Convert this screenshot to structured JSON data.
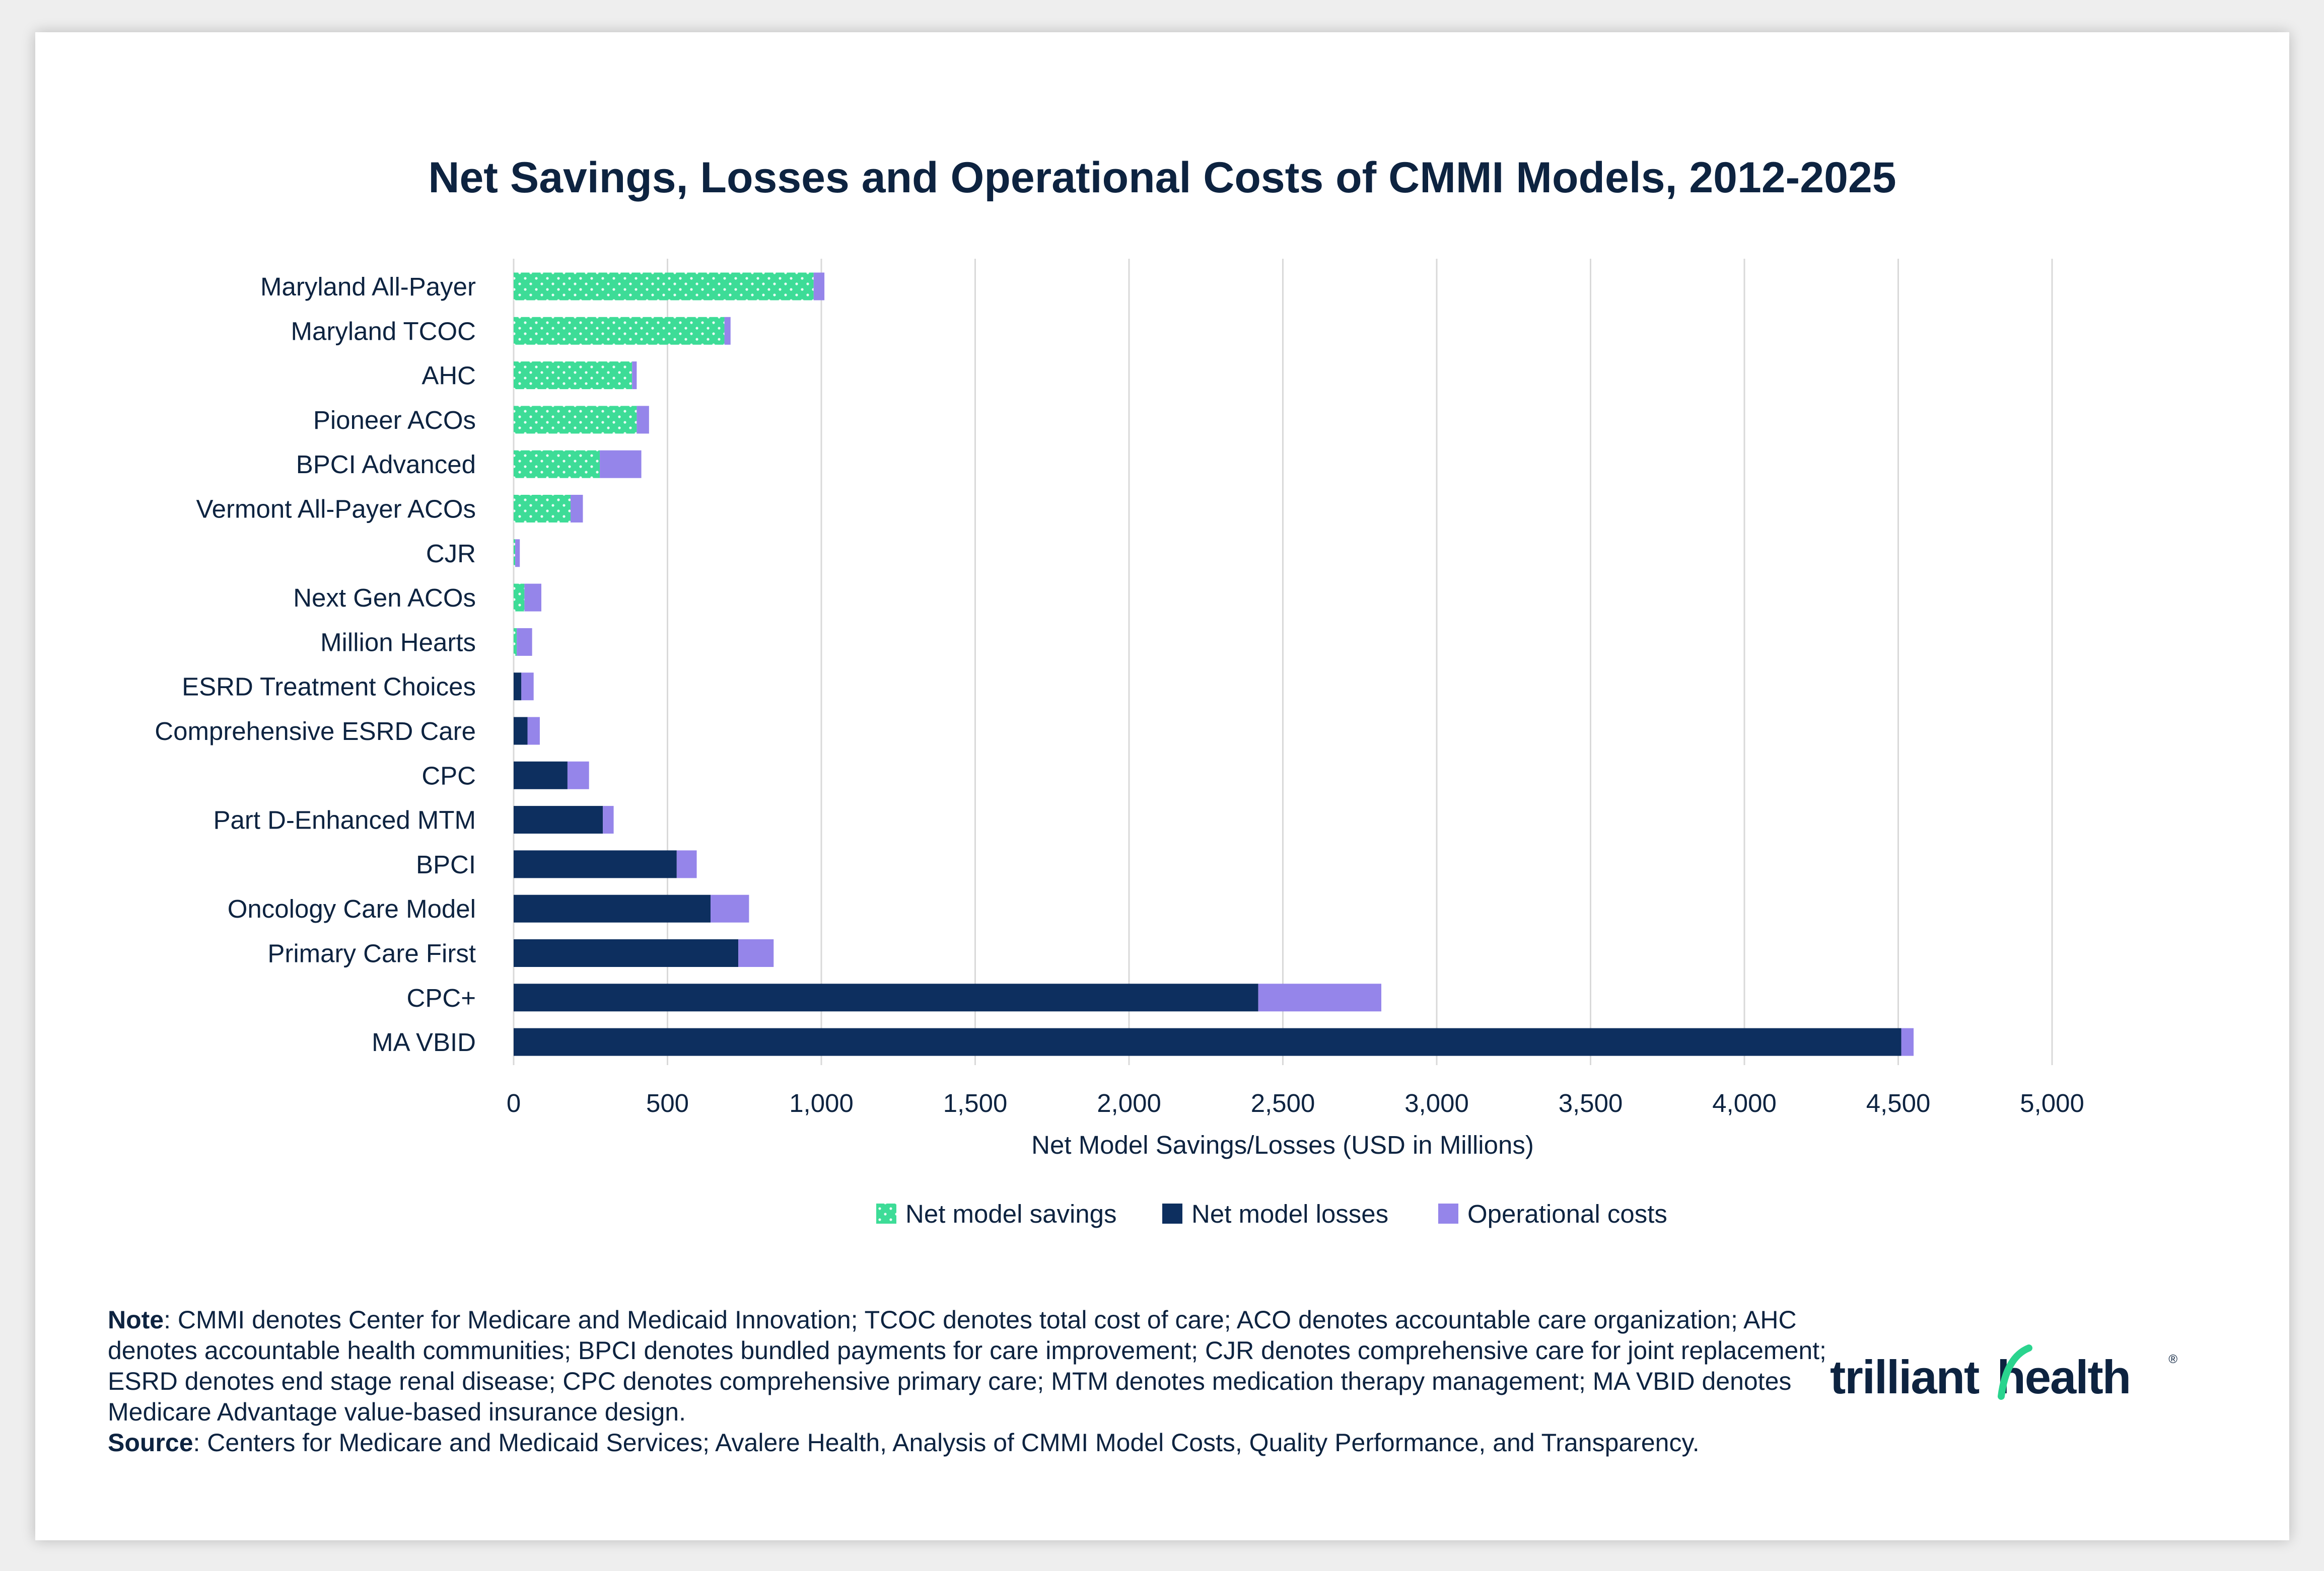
{
  "colors": {
    "savings": "#3ddc97",
    "losses": "#0d2f5f",
    "operational": "#9585ea",
    "text": "#0d2340",
    "grid": "#d9d9d9",
    "brand_green": "#2ad48e"
  },
  "chart_data": {
    "type": "bar",
    "orientation": "horizontal",
    "stacked": true,
    "title": "Net Savings, Losses and Operational Costs of CMMI Models, 2012-2025",
    "xlabel": "Net Model Savings/Losses (USD in Millions)",
    "ylabel": "",
    "xlim": [
      0,
      5000
    ],
    "xticks": [
      0,
      500,
      1000,
      1500,
      2000,
      2500,
      3000,
      3500,
      4000,
      4500,
      5000
    ],
    "xtick_labels": [
      "0",
      "500",
      "1,000",
      "1,500",
      "2,000",
      "2,500",
      "3,000",
      "3,500",
      "4,000",
      "4,500",
      "5,000"
    ],
    "grid": "vertical",
    "legend_position": "bottom-center",
    "categories": [
      "Maryland All-Payer",
      "Maryland TCOC",
      "AHC",
      "Pioneer ACOs",
      "BPCI Advanced",
      "Vermont All-Payer ACOs",
      "CJR",
      "Next Gen ACOs",
      "Million Hearts",
      "ESRD Treatment Choices",
      "Comprehensive ESRD Care",
      "CPC",
      "Part D-Enhanced MTM",
      "BPCI",
      "Oncology Care Model",
      "Primary Care First",
      "CPC+",
      "MA VBID"
    ],
    "series": [
      {
        "name": "Net model savings",
        "color_key": "savings",
        "pattern": "dotted",
        "values": [
          975,
          685,
          385,
          400,
          280,
          185,
          5,
          35,
          10,
          0,
          0,
          0,
          0,
          0,
          0,
          0,
          0,
          0
        ]
      },
      {
        "name": "Net model losses",
        "color_key": "losses",
        "pattern": "solid",
        "values": [
          0,
          0,
          0,
          0,
          0,
          0,
          0,
          0,
          0,
          25,
          45,
          175,
          290,
          530,
          640,
          730,
          2420,
          4510
        ]
      },
      {
        "name": "Operational costs",
        "color_key": "operational",
        "pattern": "solid",
        "values": [
          35,
          20,
          15,
          40,
          135,
          40,
          15,
          55,
          50,
          40,
          40,
          70,
          35,
          65,
          125,
          115,
          400,
          40
        ]
      }
    ]
  },
  "notes": {
    "note_label": "Note",
    "note_text": ": CMMI denotes Center for Medicare and Medicaid Innovation; TCOC denotes total cost of care; ACO denotes accountable care organization; AHC denotes accountable health communities; BPCI denotes bundled payments for care improvement; CJR denotes comprehensive care for joint replacement; ESRD denotes end stage renal disease; CPC denotes comprehensive primary care; MTM denotes medication therapy management; MA VBID denotes Medicare Advantage value-based insurance design.",
    "source_label": "Source",
    "source_text": ": Centers for Medicare and Medicaid Services; Avalere Health, Analysis of CMMI Model Costs, Quality Performance, and Transparency."
  },
  "logo": {
    "text_left": "trilliant",
    "text_right": "health",
    "mark": "®"
  }
}
